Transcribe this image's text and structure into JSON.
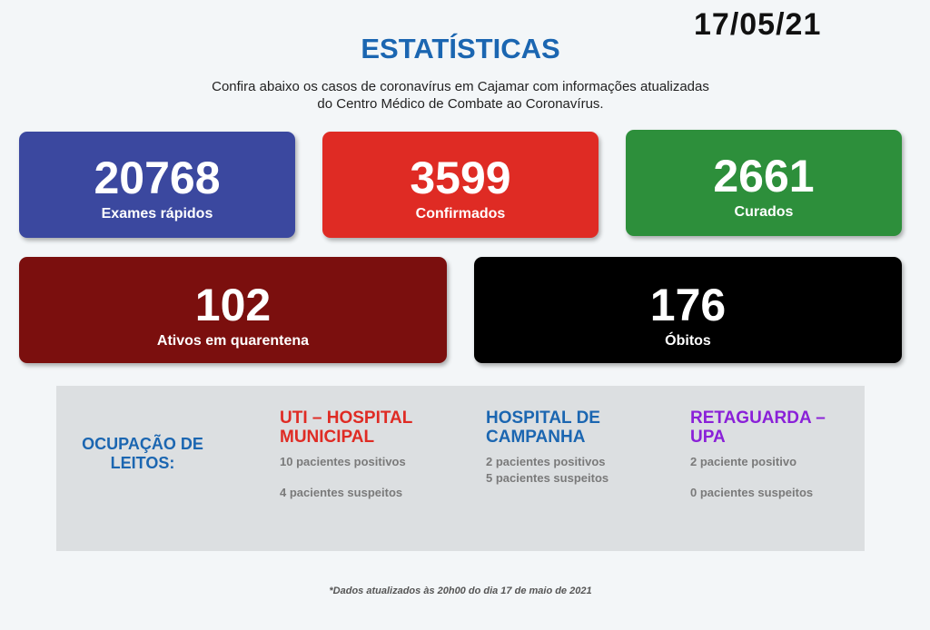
{
  "date": "17/05/21",
  "title": "ESTATÍSTICAS",
  "subtitle_line1": "Confira abaixo os casos de coronavírus em Cajamar com informações atualizadas",
  "subtitle_line2": "do Centro Médico de Combate ao Coronavírus.",
  "cards": [
    {
      "value": "20768",
      "label": "Exames rápidos",
      "color": "#3b489f"
    },
    {
      "value": "3599",
      "label": "Confirmados",
      "color": "#df2b24"
    },
    {
      "value": "2661",
      "label": "Curados",
      "color": "#2d8f3b"
    },
    {
      "value": "102",
      "label": "Ativos em quarentena",
      "color": "#7b0f0e"
    },
    {
      "value": "176",
      "label": "Óbitos",
      "color": "#000000"
    }
  ],
  "beds": {
    "title_line1": "OCUPAÇÃO DE",
    "title_line2": "LEITOS:",
    "columns": [
      {
        "head1": "UTI – HOSPITAL",
        "head2": "MUNICIPAL",
        "line1": "10 pacientes positivos",
        "line2": "4 pacientes suspeitos",
        "color": "#df2b24"
      },
      {
        "head1": "HOSPITAL DE",
        "head2": "CAMPANHA",
        "line1": "2 pacientes positivos",
        "line2": "5 pacientes suspeitos",
        "color": "#1b66b1"
      },
      {
        "head1": "RETAGUARDA –",
        "head2": "UPA",
        "line1": "2 paciente positivo",
        "line2": "0 pacientes suspeitos",
        "color": "#8a20d8"
      }
    ]
  },
  "footnote": "*Dados atualizados às 20h00 do dia 17 de maio de 2021"
}
